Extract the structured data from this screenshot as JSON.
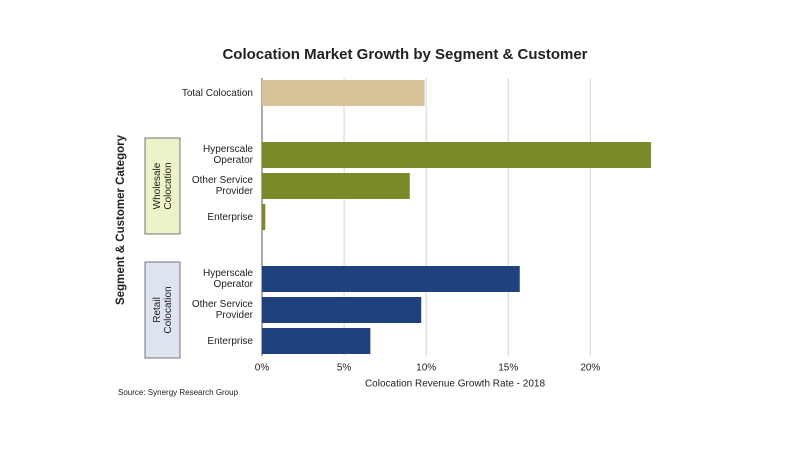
{
  "chart_data": {
    "type": "bar",
    "title": "Colocation Market Growth by Segment & Customer",
    "y_label": "Segment & Customer Category",
    "x_label": "Colocation Revenue  Growth Rate - 2018",
    "source": "Source: Synergy Research Group",
    "groups": [
      {
        "label": null,
        "color": "#d6c199",
        "categories": [
          "Total Colocation"
        ],
        "values": [
          9.9
        ]
      },
      {
        "label": "Wholesale Colocation",
        "box_color": "#eef2c9",
        "color": "#7b8a26",
        "categories": [
          "Hyperscale Operator",
          "Other Service Provider",
          "Enterprise"
        ],
        "values": [
          23.7,
          9.0,
          0.2
        ]
      },
      {
        "label": "Retail Colocation",
        "box_color": "#dfe4f1",
        "color": "#1f417c",
        "categories": [
          "Hyperscale Operator",
          "Other Service Provider",
          "Enterprise"
        ],
        "values": [
          15.7,
          9.7,
          6.6
        ]
      }
    ],
    "xlim": [
      0,
      24
    ],
    "xticks": [
      {
        "value": 0,
        "label": "0%"
      },
      {
        "value": 5,
        "label": "5%"
      },
      {
        "value": 10,
        "label": "10%"
      },
      {
        "value": 15,
        "label": "15%"
      },
      {
        "value": 20,
        "label": "20%"
      }
    ],
    "grid": true
  }
}
